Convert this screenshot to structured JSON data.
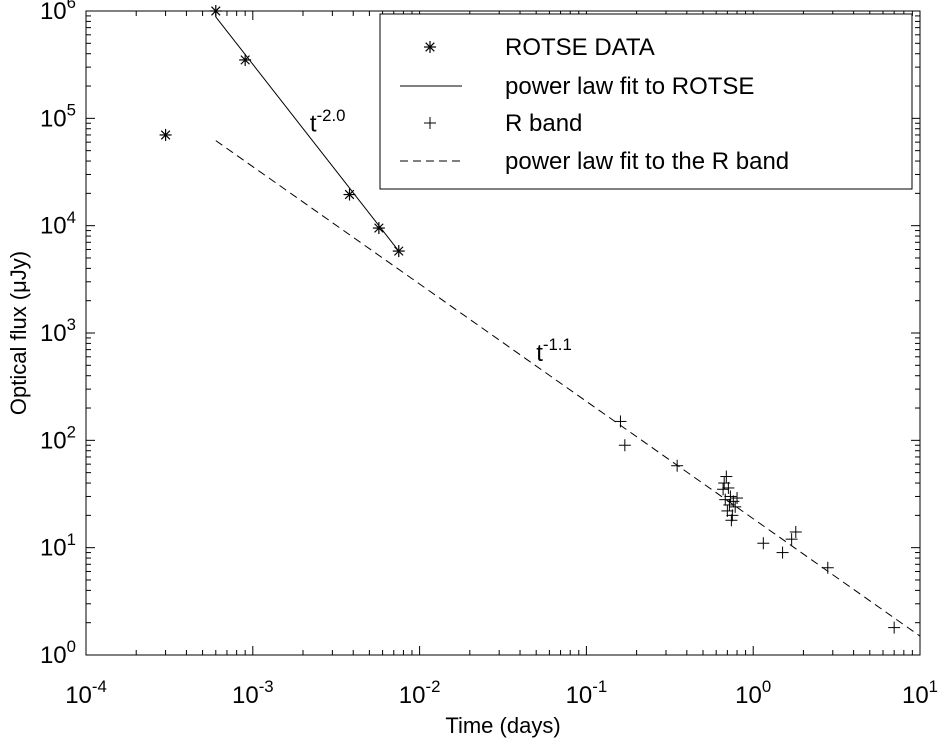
{
  "chart_data": {
    "type": "scatter",
    "xlabel": "Time (days)",
    "ylabel": "Optical flux (μJy)",
    "xscale": "log",
    "yscale": "log",
    "xlim": [
      0.0001,
      10
    ],
    "ylim": [
      1,
      1000000
    ],
    "grid": false,
    "legend_position": "top-right",
    "x_ticks": [
      {
        "value": 0.0001,
        "base": "10",
        "exp": "-4"
      },
      {
        "value": 0.001,
        "base": "10",
        "exp": "-3"
      },
      {
        "value": 0.01,
        "base": "10",
        "exp": "-2"
      },
      {
        "value": 0.1,
        "base": "10",
        "exp": "-1"
      },
      {
        "value": 1,
        "base": "10",
        "exp": "0"
      },
      {
        "value": 10,
        "base": "10",
        "exp": "1"
      }
    ],
    "y_ticks": [
      {
        "value": 1,
        "base": "10",
        "exp": "0"
      },
      {
        "value": 10,
        "base": "10",
        "exp": "1"
      },
      {
        "value": 100,
        "base": "10",
        "exp": "2"
      },
      {
        "value": 1000,
        "base": "10",
        "exp": "3"
      },
      {
        "value": 10000,
        "base": "10",
        "exp": "4"
      },
      {
        "value": 100000,
        "base": "10",
        "exp": "5"
      },
      {
        "value": 1000000,
        "base": "10",
        "exp": "6"
      }
    ],
    "series": [
      {
        "name": "ROTSE DATA",
        "kind": "points",
        "marker": "asterisk",
        "points": [
          {
            "x": 0.0003,
            "y": 70000
          },
          {
            "x": 0.0006,
            "y": 1000000
          },
          {
            "x": 0.0009,
            "y": 350000
          },
          {
            "x": 0.0038,
            "y": 19500
          },
          {
            "x": 0.0057,
            "y": 9500
          },
          {
            "x": 0.0075,
            "y": 5800
          }
        ]
      },
      {
        "name": "power law fit to ROTSE",
        "kind": "line",
        "dash": "solid",
        "points": [
          {
            "x": 0.0006,
            "y": 880000
          },
          {
            "x": 0.0075,
            "y": 5800
          }
        ]
      },
      {
        "name": "R band",
        "kind": "points",
        "marker": "plus",
        "points": [
          {
            "x": 0.16,
            "y": 150
          },
          {
            "x": 0.17,
            "y": 90
          },
          {
            "x": 0.35,
            "y": 58
          },
          {
            "x": 0.66,
            "y": 35
          },
          {
            "x": 0.67,
            "y": 40
          },
          {
            "x": 0.68,
            "y": 28
          },
          {
            "x": 0.69,
            "y": 46
          },
          {
            "x": 0.7,
            "y": 22
          },
          {
            "x": 0.71,
            "y": 36
          },
          {
            "x": 0.72,
            "y": 25
          },
          {
            "x": 0.73,
            "y": 30
          },
          {
            "x": 0.74,
            "y": 18
          },
          {
            "x": 0.75,
            "y": 20
          },
          {
            "x": 0.76,
            "y": 27
          },
          {
            "x": 0.78,
            "y": 24
          },
          {
            "x": 0.8,
            "y": 29
          },
          {
            "x": 1.15,
            "y": 11
          },
          {
            "x": 1.5,
            "y": 9
          },
          {
            "x": 1.7,
            "y": 12
          },
          {
            "x": 1.8,
            "y": 14
          },
          {
            "x": 2.8,
            "y": 6.5
          },
          {
            "x": 7.0,
            "y": 1.8
          }
        ]
      },
      {
        "name": "power law fit to the R band",
        "kind": "line",
        "dash": "dashed",
        "points": [
          {
            "x": 0.0006,
            "y": 62000
          },
          {
            "x": 10,
            "y": 1.5
          }
        ]
      }
    ],
    "annotations": [
      {
        "base": "t",
        "exp": "-2.0",
        "x": 0.0022,
        "y": 75000
      },
      {
        "base": "t",
        "exp": "-1.1",
        "x": 0.05,
        "y": 550
      }
    ]
  }
}
